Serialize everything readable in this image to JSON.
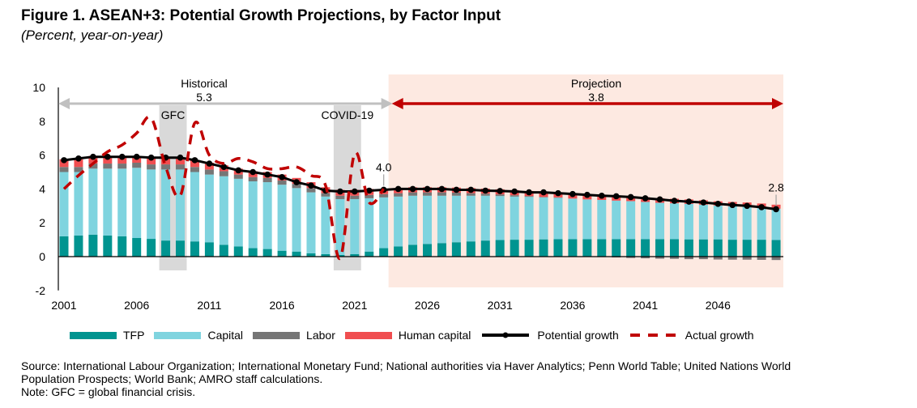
{
  "header": {
    "title": "Figure 1. ASEAN+3: Potential Growth Projections, by Factor Input",
    "subtitle": "(Percent, year-on-year)"
  },
  "chart_data": {
    "type": "bar",
    "stacked": true,
    "title": "Figure 1. ASEAN+3: Potential Growth Projections, by Factor Input",
    "subtitle": "(Percent, year-on-year)",
    "xlabel": "",
    "ylabel": "",
    "ylim": [
      -2,
      10
    ],
    "yticks": [
      -2,
      0,
      2,
      4,
      6,
      8,
      10
    ],
    "xtick_labels": [
      "2001",
      "2006",
      "2011",
      "2016",
      "2021",
      "2026",
      "2031",
      "2036",
      "2041",
      "2046"
    ],
    "x": [
      2001,
      2002,
      2003,
      2004,
      2005,
      2006,
      2007,
      2008,
      2009,
      2010,
      2011,
      2012,
      2013,
      2014,
      2015,
      2016,
      2017,
      2018,
      2019,
      2020,
      2021,
      2022,
      2023,
      2024,
      2025,
      2026,
      2027,
      2028,
      2029,
      2030,
      2031,
      2032,
      2033,
      2034,
      2035,
      2036,
      2037,
      2038,
      2039,
      2040,
      2041,
      2042,
      2043,
      2044,
      2045,
      2046,
      2047,
      2048,
      2049,
      2050
    ],
    "series": [
      {
        "name": "TFP",
        "type": "bar",
        "color": "#009490",
        "values": [
          1.2,
          1.25,
          1.3,
          1.25,
          1.2,
          1.1,
          1.05,
          0.95,
          0.95,
          0.9,
          0.85,
          0.7,
          0.6,
          0.5,
          0.45,
          0.35,
          0.3,
          0.2,
          0.15,
          0.1,
          0.15,
          0.3,
          0.5,
          0.6,
          0.7,
          0.75,
          0.8,
          0.85,
          0.9,
          0.95,
          0.98,
          1.0,
          1.0,
          1.02,
          1.03,
          1.03,
          1.03,
          1.03,
          1.03,
          1.03,
          1.03,
          1.03,
          1.03,
          1.02,
          1.02,
          1.02,
          1.0,
          1.0,
          1.0,
          0.98
        ]
      },
      {
        "name": "Capital",
        "type": "bar",
        "color": "#7fd4df",
        "values": [
          3.8,
          3.75,
          3.9,
          3.95,
          4.0,
          4.15,
          4.1,
          4.2,
          4.2,
          4.1,
          4.0,
          4.05,
          4.0,
          3.95,
          3.95,
          3.9,
          3.75,
          3.6,
          3.4,
          3.3,
          3.25,
          3.15,
          3.0,
          2.95,
          2.9,
          2.85,
          2.8,
          2.75,
          2.7,
          2.65,
          2.6,
          2.55,
          2.53,
          2.48,
          2.45,
          2.4,
          2.35,
          2.32,
          2.28,
          2.25,
          2.2,
          2.15,
          2.12,
          2.1,
          2.05,
          2.0,
          1.98,
          1.95,
          1.9,
          1.85
        ]
      },
      {
        "name": "Labor",
        "type": "bar",
        "color": "#767676",
        "values": [
          0.3,
          0.3,
          0.3,
          0.3,
          0.3,
          0.3,
          0.3,
          0.3,
          0.3,
          0.3,
          0.3,
          0.3,
          0.25,
          0.25,
          0.25,
          0.25,
          0.25,
          0.25,
          0.2,
          0.2,
          0.2,
          0.2,
          0.2,
          0.2,
          0.2,
          0.2,
          0.2,
          0.18,
          0.15,
          0.12,
          0.1,
          0.08,
          0.05,
          0.03,
          0.02,
          0.0,
          -0.02,
          -0.03,
          -0.05,
          -0.08,
          -0.1,
          -0.12,
          -0.13,
          -0.15,
          -0.15,
          -0.17,
          -0.18,
          -0.18,
          -0.19,
          -0.2
        ]
      },
      {
        "name": "Human capital",
        "type": "bar",
        "color": "#f04e50",
        "values": [
          0.45,
          0.45,
          0.45,
          0.45,
          0.45,
          0.4,
          0.4,
          0.4,
          0.4,
          0.4,
          0.4,
          0.35,
          0.35,
          0.35,
          0.35,
          0.35,
          0.35,
          0.35,
          0.35,
          0.35,
          0.35,
          0.35,
          0.3,
          0.3,
          0.3,
          0.3,
          0.3,
          0.3,
          0.3,
          0.3,
          0.3,
          0.3,
          0.3,
          0.3,
          0.3,
          0.3,
          0.3,
          0.28,
          0.28,
          0.28,
          0.28,
          0.27,
          0.27,
          0.26,
          0.26,
          0.25,
          0.25,
          0.25,
          0.24,
          0.24
        ]
      },
      {
        "name": "Potential growth",
        "type": "line",
        "color": "#000000",
        "marker": "circle",
        "values": [
          5.7,
          5.8,
          5.9,
          5.9,
          5.9,
          5.9,
          5.85,
          5.85,
          5.85,
          5.7,
          5.5,
          5.3,
          5.1,
          5.0,
          4.85,
          4.7,
          4.4,
          4.2,
          3.9,
          3.85,
          3.85,
          3.9,
          3.95,
          4.0,
          4.0,
          4.0,
          4.0,
          3.95,
          3.95,
          3.9,
          3.88,
          3.85,
          3.8,
          3.8,
          3.75,
          3.7,
          3.65,
          3.6,
          3.57,
          3.52,
          3.45,
          3.38,
          3.3,
          3.25,
          3.2,
          3.12,
          3.05,
          3.0,
          2.92,
          2.8
        ]
      },
      {
        "name": "Actual growth",
        "type": "line",
        "style": "dashed",
        "color": "#c00000",
        "values": [
          4.0,
          4.8,
          5.5,
          6.2,
          6.6,
          7.3,
          8.2,
          5.3,
          3.6,
          7.9,
          6.0,
          5.5,
          5.8,
          5.6,
          5.2,
          5.2,
          5.3,
          4.8,
          4.2,
          -0.1,
          6.1,
          3.2,
          4.0,
          null,
          null,
          null,
          null,
          null,
          null,
          null,
          null,
          null,
          null,
          null,
          null,
          null,
          null,
          null,
          null,
          null,
          null,
          null,
          null,
          null,
          null,
          null,
          null,
          null,
          null,
          null
        ]
      }
    ],
    "shaded_periods": [
      {
        "label": "GFC",
        "from": 2008,
        "to": 2009,
        "color": "#d9d9d9"
      },
      {
        "label": "COVID-19",
        "from": 2020,
        "to": 2021,
        "color": "#d9d9d9"
      },
      {
        "label": "Projection",
        "from": 2024,
        "to": 2050,
        "color": "#fde9e1"
      }
    ],
    "annotations": [
      {
        "text": "Historical",
        "value_text": "5.3",
        "type": "range-arrow",
        "from": 2001,
        "to": 2023,
        "color": "#c0c0c0"
      },
      {
        "text": "Projection",
        "value_text": "3.8",
        "type": "range-arrow",
        "from": 2024,
        "to": 2050,
        "color": "#c00000"
      },
      {
        "text": "4.0",
        "type": "point-label",
        "x": 2023,
        "y": 4.0
      },
      {
        "text": "2.8",
        "type": "point-label",
        "x": 2050,
        "y": 2.8
      }
    ],
    "legend": {
      "position": "bottom",
      "items": [
        "TFP",
        "Capital",
        "Labor",
        "Human capital",
        "Potential growth",
        "Actual growth"
      ]
    },
    "grid": false
  },
  "legend": {
    "tfp": "TFP",
    "capital": "Capital",
    "labor": "Labor",
    "human_capital": "Human capital",
    "potential": "Potential growth",
    "actual": "Actual growth"
  },
  "footer": {
    "source": "Source: International Labour Organization; International Monetary Fund; National authorities via Haver Analytics; Penn World Table; United Nations World Population Prospects; World Bank; AMRO staff calculations.",
    "note": "Note: GFC = global financial crisis."
  }
}
